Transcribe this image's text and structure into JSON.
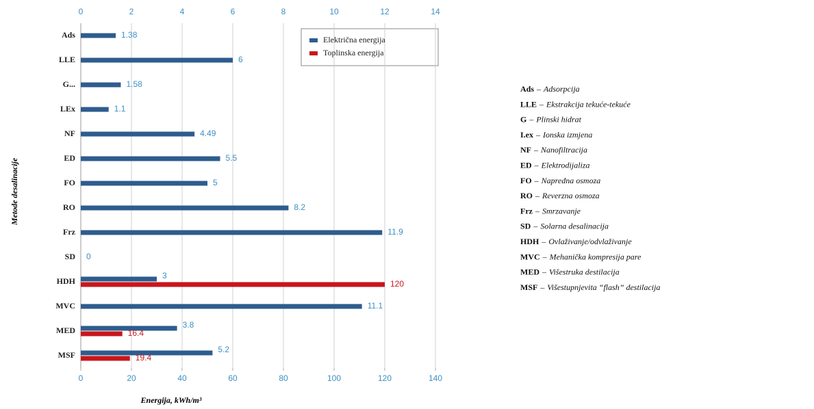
{
  "chart_data": {
    "type": "bar",
    "orientation": "horizontal",
    "y_label": "Metode desalinacije",
    "x_label": "Energija, kWh/m³",
    "categories": [
      "Ads",
      "LLE",
      "G...",
      "LEx",
      "NF",
      "ED",
      "FO",
      "RO",
      "Frz",
      "SD",
      "HDH",
      "MVC",
      "MED",
      "MSF"
    ],
    "series": [
      {
        "name": "Električna energija",
        "color": "#2e5c8e",
        "label_color": "#3d8fc4",
        "axis": "x",
        "values": [
          1.38,
          6,
          1.58,
          1.1,
          4.49,
          5.5,
          5,
          8.2,
          11.9,
          0,
          3,
          11.1,
          3.8,
          5.2
        ]
      },
      {
        "name": "Toplinska energija",
        "color": "#c8161d",
        "label_color": "#c8161d",
        "axis": "x2",
        "values": [
          null,
          null,
          null,
          null,
          null,
          null,
          null,
          null,
          null,
          null,
          120,
          null,
          16.4,
          19.4
        ]
      }
    ],
    "xlim": [
      0,
      14
    ],
    "xticks": [
      0,
      2,
      4,
      6,
      8,
      10,
      12,
      14
    ],
    "x2lim": [
      0,
      140
    ],
    "x2ticks": [
      0,
      20,
      40,
      60,
      80,
      100,
      120,
      140
    ],
    "grid": true,
    "legend": "upper right"
  },
  "key": {
    "separator": "–",
    "items": [
      {
        "abbr": "Ads",
        "name": "Adsorpcija"
      },
      {
        "abbr": "LLE",
        "name": "Ekstrakcija tekuće-tekuće"
      },
      {
        "abbr": "G",
        "name": "Plinski hidrat"
      },
      {
        "abbr": "I.ex",
        "name": "Ionska izmjena"
      },
      {
        "abbr": "NF",
        "name": "Nanofiltracija"
      },
      {
        "abbr": "ED",
        "name": "Elektrodijaliza"
      },
      {
        "abbr": "FO",
        "name": "Napredna osmoza"
      },
      {
        "abbr": "RO",
        "name": "Reverzna osmoza"
      },
      {
        "abbr": "Frz",
        "name": "Smrzavanje"
      },
      {
        "abbr": "SD",
        "name": "Solarna desalinacija"
      },
      {
        "abbr": "HDH",
        "name": "Ovlaživanje/odvlaživanje"
      },
      {
        "abbr": "MVC",
        "name": "Mehanička kompresija pare"
      },
      {
        "abbr": "MED",
        "name": "Višestruka destilacija"
      },
      {
        "abbr": "MSF",
        "name": "Višestupnjevita “flash” destilacija"
      }
    ]
  }
}
